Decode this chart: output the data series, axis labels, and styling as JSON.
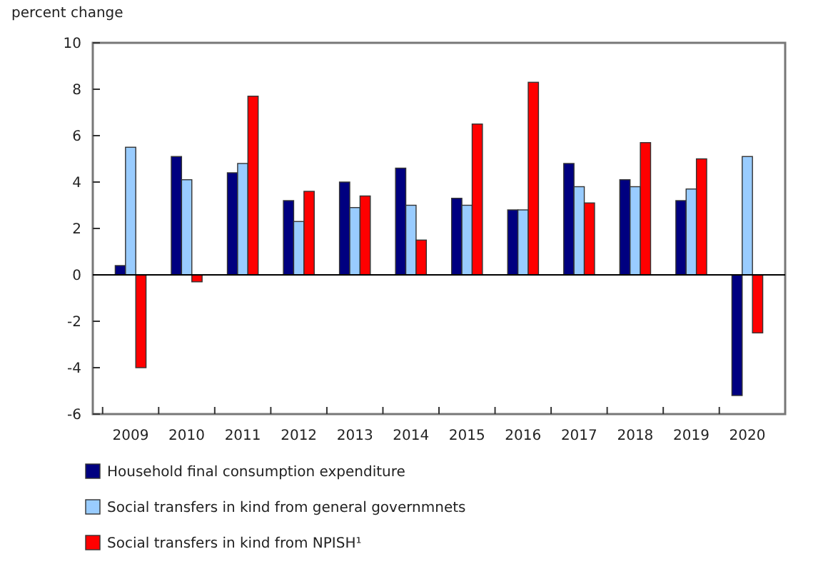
{
  "chart_data": {
    "type": "bar",
    "ylabel": "percent change",
    "categories": [
      "2009",
      "2010",
      "2011",
      "2012",
      "2013",
      "2014",
      "2015",
      "2016",
      "2017",
      "2018",
      "2019",
      "2020"
    ],
    "series": [
      {
        "name": "Household final consumption expenditure",
        "color": "#000080",
        "values": [
          0.4,
          5.1,
          4.4,
          3.2,
          4.0,
          4.6,
          3.3,
          2.8,
          4.8,
          4.1,
          3.2,
          -5.2
        ]
      },
      {
        "name": "Social transfers in kind from general governmnets",
        "color": "#99ccff",
        "values": [
          5.5,
          4.1,
          4.8,
          2.3,
          2.9,
          3.0,
          3.0,
          2.8,
          3.8,
          3.8,
          3.7,
          5.1
        ]
      },
      {
        "name": "Social transfers in kind from NPISH¹",
        "color": "#ff0000",
        "values": [
          -4.0,
          -0.3,
          7.7,
          3.6,
          3.4,
          1.5,
          6.5,
          8.3,
          3.1,
          5.7,
          5.0,
          -2.5
        ]
      }
    ],
    "ylim": [
      -6,
      10
    ],
    "yticks": [
      -6,
      -4,
      -2,
      0,
      2,
      4,
      6,
      8,
      10
    ],
    "legend": "bottom"
  }
}
